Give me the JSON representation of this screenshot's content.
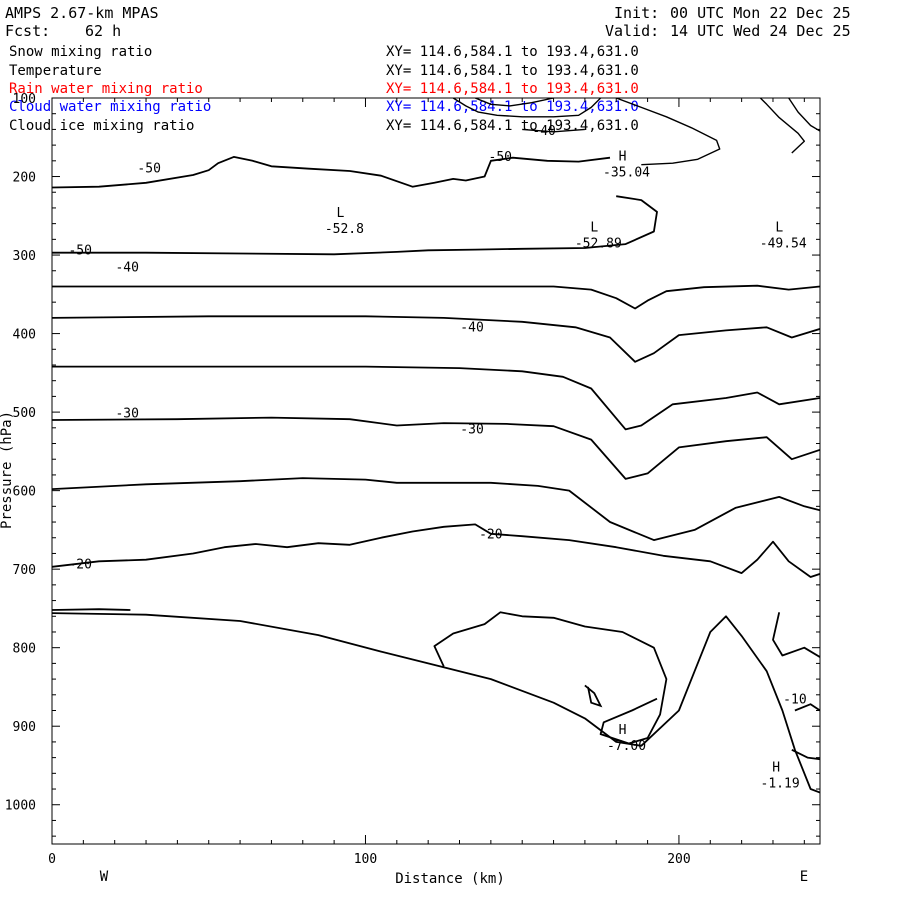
{
  "header": {
    "model": "AMPS 2.67-km MPAS",
    "init_label": "Init:",
    "init": "00 UTC Mon 22 Dec 25",
    "fcst_label": "Fcst:",
    "fcst": "62 h",
    "valid_label": "Valid:",
    "valid": "14 UTC Wed 24 Dec 25"
  },
  "legend": [
    {
      "name": "Snow mixing ratio",
      "xy": "XY= 114.6,584.1 to 193.4,631.0",
      "color": "#000000"
    },
    {
      "name": "Temperature",
      "xy": "XY= 114.6,584.1 to 193.4,631.0",
      "color": "#000000"
    },
    {
      "name": "Rain water mixing ratio",
      "xy": "XY= 114.6,584.1 to 193.4,631.0",
      "color": "#ff0000"
    },
    {
      "name": "Cloud water mixing ratio",
      "xy": "XY= 114.6,584.1 to 193.4,631.0",
      "color": "#0000ff"
    },
    {
      "name": "Cloud ice mixing ratio",
      "xy": "XY= 114.6,584.1 to 193.4,631.0",
      "color": "#000000"
    }
  ],
  "chart_data": {
    "type": "contour",
    "xlabel": "Distance (km)",
    "ylabel": "Pressure (hPa)",
    "xlim": [
      0,
      245
    ],
    "ylim": [
      1050,
      100
    ],
    "x_ticks": [
      0,
      100,
      200
    ],
    "y_ticks": [
      100,
      200,
      300,
      400,
      500,
      600,
      700,
      800,
      900,
      1000
    ],
    "x_end_labels": {
      "left": "W",
      "right": "E"
    },
    "contour_labels": [
      {
        "text": "-50",
        "x": 31,
        "p": 190
      },
      {
        "text": "-50",
        "x": 9,
        "p": 294
      },
      {
        "text": "-50",
        "x": 143,
        "p": 175
      },
      {
        "text": "-40",
        "x": 157,
        "p": 142
      },
      {
        "text": "-40",
        "x": 24,
        "p": 316
      },
      {
        "text": "-40",
        "x": 134,
        "p": 392
      },
      {
        "text": "-30",
        "x": 24,
        "p": 502
      },
      {
        "text": "-30",
        "x": 134,
        "p": 522
      },
      {
        "text": "-20",
        "x": 140,
        "p": 656
      },
      {
        "text": "-20",
        "x": 9,
        "p": 694
      },
      {
        "text": "-10",
        "x": 237,
        "p": 866
      }
    ],
    "extrema": [
      {
        "kind": "L",
        "value": "-52.8",
        "x": 92,
        "p": 262
      },
      {
        "kind": "L",
        "value": "-52.89",
        "x": 173,
        "p": 280
      },
      {
        "kind": "L",
        "value": "-49.54",
        "x": 232,
        "p": 280
      },
      {
        "kind": "H",
        "value": "-35.04",
        "x": 182,
        "p": 190
      },
      {
        "kind": "H",
        "value": "-7.00",
        "x": 182,
        "p": 920
      },
      {
        "kind": "H",
        "value": "-1.19",
        "x": 231,
        "p": 968
      }
    ],
    "isotherms": [
      {
        "level": -50,
        "points": [
          [
            0,
            214
          ],
          [
            15,
            213
          ],
          [
            30,
            208
          ],
          [
            45,
            198
          ],
          [
            50,
            192
          ],
          [
            53,
            183
          ],
          [
            58,
            175
          ],
          [
            64,
            180
          ],
          [
            70,
            187
          ],
          [
            82,
            190
          ],
          [
            95,
            193
          ],
          [
            105,
            199
          ],
          [
            115,
            213
          ],
          [
            122,
            208
          ],
          [
            128,
            203
          ],
          [
            132,
            205
          ],
          [
            138,
            200
          ],
          [
            140,
            180
          ],
          [
            147,
            176
          ],
          [
            158,
            180
          ],
          [
            168,
            181
          ],
          [
            178,
            176
          ]
        ]
      },
      {
        "level": -50,
        "points": [
          [
            0,
            297
          ],
          [
            30,
            297
          ],
          [
            60,
            298
          ],
          [
            90,
            299
          ],
          [
            110,
            296
          ],
          [
            120,
            294
          ],
          [
            135,
            293
          ],
          [
            150,
            292
          ],
          [
            170,
            291
          ],
          [
            183,
            286
          ],
          [
            192,
            270
          ],
          [
            193,
            245
          ],
          [
            188,
            230
          ],
          [
            180,
            225
          ]
        ]
      },
      {
        "level": -40,
        "points": [
          [
            0,
            340
          ],
          [
            50,
            340
          ],
          [
            100,
            340
          ],
          [
            140,
            340
          ],
          [
            160,
            340
          ],
          [
            172,
            344
          ],
          [
            180,
            355
          ],
          [
            186,
            368
          ],
          [
            190,
            358
          ],
          [
            196,
            346
          ],
          [
            208,
            341
          ],
          [
            225,
            339
          ],
          [
            235,
            344
          ],
          [
            245,
            340
          ]
        ]
      },
      {
        "level": -40,
        "points": [
          [
            0,
            380
          ],
          [
            50,
            378
          ],
          [
            100,
            378
          ],
          [
            125,
            380
          ],
          [
            150,
            385
          ],
          [
            167,
            392
          ],
          [
            178,
            405
          ],
          [
            186,
            436
          ],
          [
            192,
            425
          ],
          [
            200,
            402
          ],
          [
            215,
            396
          ],
          [
            228,
            392
          ],
          [
            236,
            405
          ],
          [
            245,
            394
          ]
        ]
      },
      {
        "level": -40,
        "points": [
          [
            0,
            442
          ],
          [
            50,
            442
          ],
          [
            100,
            442
          ],
          [
            130,
            444
          ],
          [
            150,
            448
          ],
          [
            163,
            455
          ],
          [
            172,
            470
          ],
          [
            183,
            522
          ],
          [
            188,
            517
          ],
          [
            198,
            490
          ],
          [
            215,
            482
          ],
          [
            225,
            475
          ],
          [
            232,
            490
          ],
          [
            245,
            482
          ]
        ]
      },
      {
        "level": -30,
        "points": [
          [
            0,
            510
          ],
          [
            40,
            509
          ],
          [
            70,
            507
          ],
          [
            95,
            509
          ],
          [
            110,
            517
          ],
          [
            125,
            514
          ],
          [
            145,
            515
          ],
          [
            160,
            518
          ],
          [
            172,
            535
          ],
          [
            183,
            585
          ],
          [
            190,
            578
          ],
          [
            200,
            545
          ],
          [
            215,
            537
          ],
          [
            228,
            532
          ],
          [
            236,
            560
          ],
          [
            245,
            548
          ]
        ]
      },
      {
        "level": -30,
        "points": [
          [
            0,
            598
          ],
          [
            30,
            592
          ],
          [
            60,
            588
          ],
          [
            80,
            584
          ],
          [
            100,
            586
          ],
          [
            110,
            590
          ],
          [
            125,
            590
          ],
          [
            140,
            590
          ],
          [
            155,
            594
          ],
          [
            165,
            600
          ],
          [
            178,
            640
          ],
          [
            192,
            663
          ],
          [
            205,
            650
          ],
          [
            218,
            622
          ],
          [
            232,
            608
          ],
          [
            240,
            620
          ],
          [
            245,
            625
          ]
        ]
      },
      {
        "level": -20,
        "points": [
          [
            0,
            697
          ],
          [
            15,
            690
          ],
          [
            30,
            688
          ],
          [
            45,
            680
          ],
          [
            55,
            672
          ],
          [
            65,
            668
          ],
          [
            75,
            672
          ],
          [
            85,
            667
          ],
          [
            95,
            669
          ],
          [
            105,
            660
          ],
          [
            115,
            652
          ],
          [
            125,
            646
          ],
          [
            135,
            643
          ],
          [
            140,
            655
          ],
          [
            150,
            658
          ],
          [
            165,
            663
          ],
          [
            180,
            672
          ],
          [
            195,
            683
          ],
          [
            210,
            690
          ],
          [
            220,
            705
          ],
          [
            225,
            688
          ],
          [
            230,
            665
          ],
          [
            235,
            690
          ],
          [
            242,
            710
          ],
          [
            245,
            706
          ]
        ]
      },
      {
        "level": -10,
        "points": [
          [
            0,
            756
          ],
          [
            30,
            758
          ],
          [
            60,
            766
          ],
          [
            85,
            784
          ],
          [
            105,
            805
          ],
          [
            120,
            820
          ],
          [
            140,
            840
          ],
          [
            160,
            870
          ],
          [
            170,
            890
          ],
          [
            180,
            920
          ],
          [
            188,
            925
          ],
          [
            200,
            880
          ],
          [
            205,
            830
          ],
          [
            210,
            780
          ],
          [
            215,
            760
          ],
          [
            220,
            785
          ],
          [
            228,
            830
          ],
          [
            233,
            880
          ],
          [
            237,
            930
          ],
          [
            242,
            980
          ],
          [
            246,
            986
          ]
        ]
      },
      {
        "level": -10,
        "points": [
          [
            0,
            752
          ],
          [
            15,
            751
          ],
          [
            25,
            752
          ]
        ]
      },
      {
        "level": -10,
        "points": [
          [
            125,
            824
          ],
          [
            122,
            798
          ],
          [
            128,
            782
          ],
          [
            138,
            770
          ],
          [
            143,
            755
          ],
          [
            150,
            760
          ],
          [
            160,
            762
          ],
          [
            170,
            773
          ],
          [
            182,
            780
          ],
          [
            192,
            800
          ],
          [
            196,
            840
          ],
          [
            194,
            885
          ],
          [
            190,
            915
          ],
          [
            184,
            922
          ],
          [
            175,
            910
          ],
          [
            176,
            895
          ],
          [
            185,
            880
          ],
          [
            193,
            865
          ]
        ]
      },
      {
        "level": -10,
        "points": [
          [
            232,
            755
          ],
          [
            230,
            790
          ],
          [
            233,
            810
          ],
          [
            240,
            800
          ],
          [
            245,
            812
          ]
        ]
      },
      {
        "level": -10,
        "points": [
          [
            237,
            880
          ],
          [
            242,
            872
          ],
          [
            245,
            880
          ]
        ]
      },
      {
        "level": -10,
        "points": [
          [
            236,
            930
          ],
          [
            241,
            940
          ],
          [
            245,
            942
          ]
        ]
      }
    ],
    "ice_contours": [
      {
        "points": [
          [
            128,
            100
          ],
          [
            132,
            110
          ],
          [
            136,
            118
          ],
          [
            142,
            122
          ],
          [
            150,
            124
          ],
          [
            160,
            124
          ],
          [
            168,
            122
          ],
          [
            172,
            112
          ],
          [
            175,
            100
          ]
        ]
      },
      {
        "points": [
          [
            135,
            100
          ],
          [
            140,
            108
          ],
          [
            146,
            110
          ],
          [
            153,
            106
          ],
          [
            160,
            100
          ]
        ]
      },
      {
        "points": [
          [
            180,
            100
          ],
          [
            188,
            112
          ],
          [
            196,
            124
          ],
          [
            204,
            138
          ],
          [
            212,
            154
          ],
          [
            213,
            165
          ],
          [
            206,
            178
          ],
          [
            198,
            183
          ],
          [
            188,
            185
          ]
        ]
      },
      {
        "points": [
          [
            226,
            100
          ],
          [
            228,
            108
          ],
          [
            232,
            125
          ],
          [
            238,
            145
          ],
          [
            240,
            155
          ],
          [
            236,
            170
          ]
        ]
      },
      {
        "points": [
          [
            235,
            100
          ],
          [
            238,
            118
          ],
          [
            242,
            135
          ],
          [
            245,
            142
          ]
        ]
      },
      {
        "points": [
          [
            150,
            140
          ],
          [
            160,
            143
          ],
          [
            170,
            140
          ]
        ]
      }
    ],
    "rain_contours": [
      {
        "points": [
          [
            170,
            848
          ],
          [
            173,
            858
          ],
          [
            175,
            874
          ],
          [
            172,
            870
          ],
          [
            171,
            850
          ]
        ]
      }
    ]
  }
}
